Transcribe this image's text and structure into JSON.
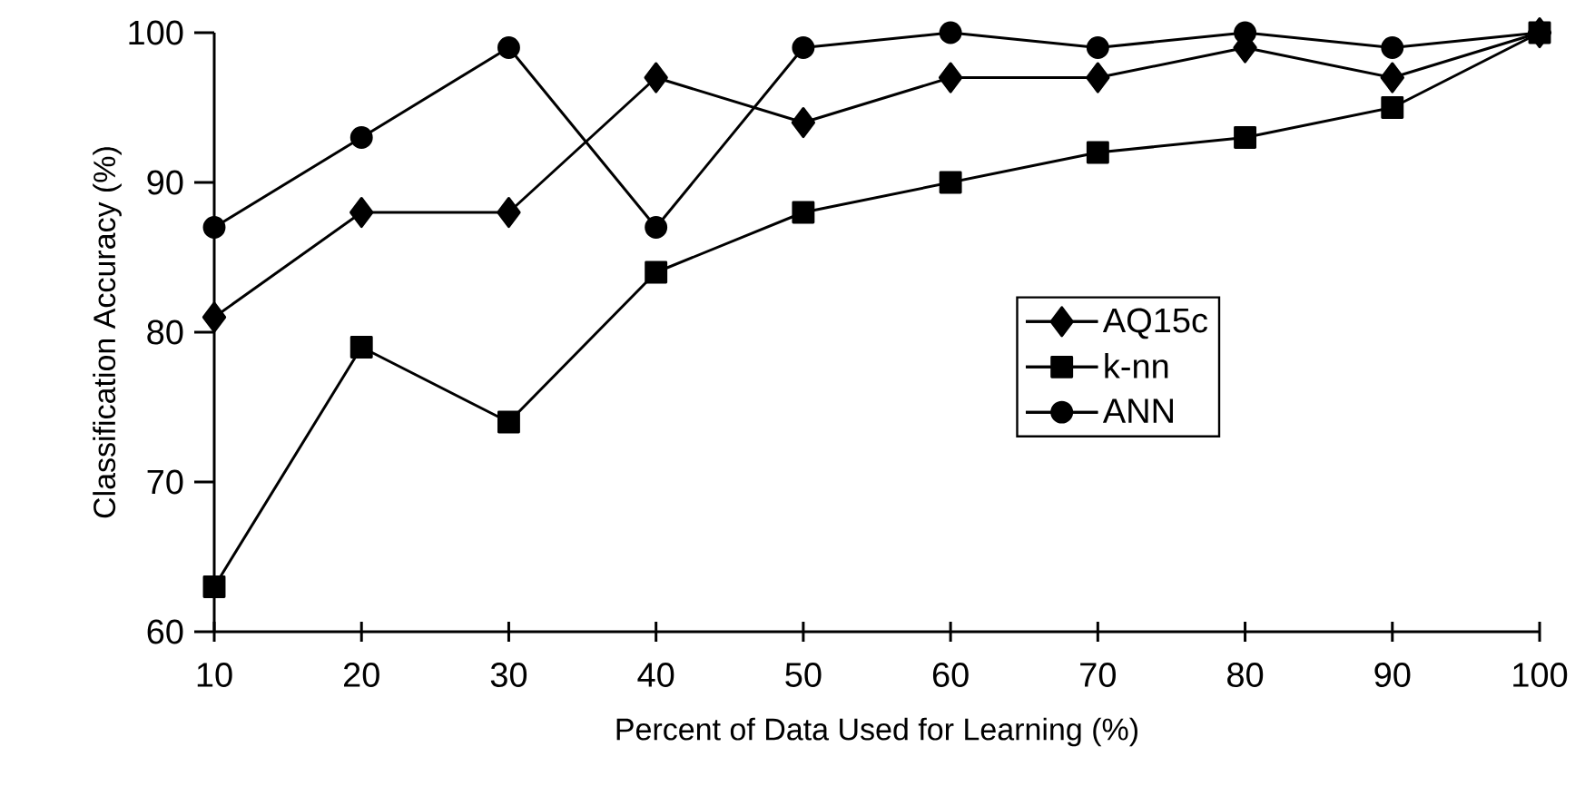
{
  "chart_data": {
    "type": "line",
    "xlabel": "Percent of Data Used for Learning (%)",
    "ylabel": "Classification Accuracy (%)",
    "x": [
      10,
      20,
      30,
      40,
      50,
      60,
      70,
      80,
      90,
      100
    ],
    "series": [
      {
        "name": "AQ15c",
        "color": "#000000",
        "marker": "diamond",
        "values": [
          81,
          88,
          88,
          97,
          94,
          97,
          97,
          99,
          97,
          100
        ]
      },
      {
        "name": "k-nn",
        "color": "#000000",
        "marker": "square",
        "values": [
          63,
          79,
          74,
          84,
          88,
          90,
          92,
          93,
          95,
          100
        ]
      },
      {
        "name": "ANN",
        "color": "#000000",
        "marker": "circle",
        "values": [
          87,
          93,
          99,
          87,
          99,
          100,
          99,
          100,
          99,
          100
        ]
      }
    ],
    "xlim": [
      10,
      100
    ],
    "xticks": [
      10,
      20,
      30,
      40,
      50,
      60,
      70,
      80,
      90,
      100
    ],
    "ylim": [
      60,
      100
    ],
    "yticks": [
      60,
      70,
      80,
      90,
      100
    ],
    "legend": "right",
    "line_style": "solid"
  }
}
